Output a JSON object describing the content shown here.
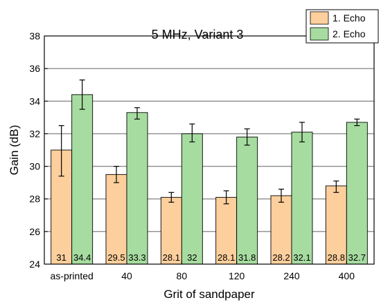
{
  "chart_data": {
    "type": "bar",
    "title": "5 MHz, Variant 3",
    "xlabel": "Grit of sandpaper",
    "ylabel": "Gain (dB)",
    "ylim": [
      24,
      38
    ],
    "yticks": [
      "24",
      "26",
      "28",
      "30",
      "32",
      "34",
      "36",
      "38"
    ],
    "grid": true,
    "legend_position": "top-right",
    "categories": [
      "as-printed",
      "40",
      "80",
      "120",
      "240",
      "400"
    ],
    "series": [
      {
        "name": "1. Echo",
        "color": "#fdcf9c",
        "values": [
          31,
          29.5,
          28.1,
          28.1,
          28.2,
          28.8
        ],
        "value_labels": [
          "31",
          "29.5",
          "28.1",
          "28.1",
          "28.2",
          "28.8"
        ],
        "error_low": [
          29.4,
          29.0,
          27.8,
          27.7,
          27.8,
          28.4
        ],
        "error_high": [
          32.5,
          30.0,
          28.4,
          28.5,
          28.6,
          29.1
        ]
      },
      {
        "name": "2. Echo",
        "color": "#a6dca0",
        "values": [
          34.4,
          33.3,
          32,
          31.8,
          32.1,
          32.7
        ],
        "value_labels": [
          "34.4",
          "33.3",
          "32",
          "31.8",
          "32.1",
          "32.7"
        ],
        "error_low": [
          33.5,
          32.9,
          31.5,
          31.3,
          31.5,
          32.5
        ],
        "error_high": [
          35.3,
          33.6,
          32.6,
          32.3,
          32.7,
          32.9
        ]
      }
    ]
  }
}
